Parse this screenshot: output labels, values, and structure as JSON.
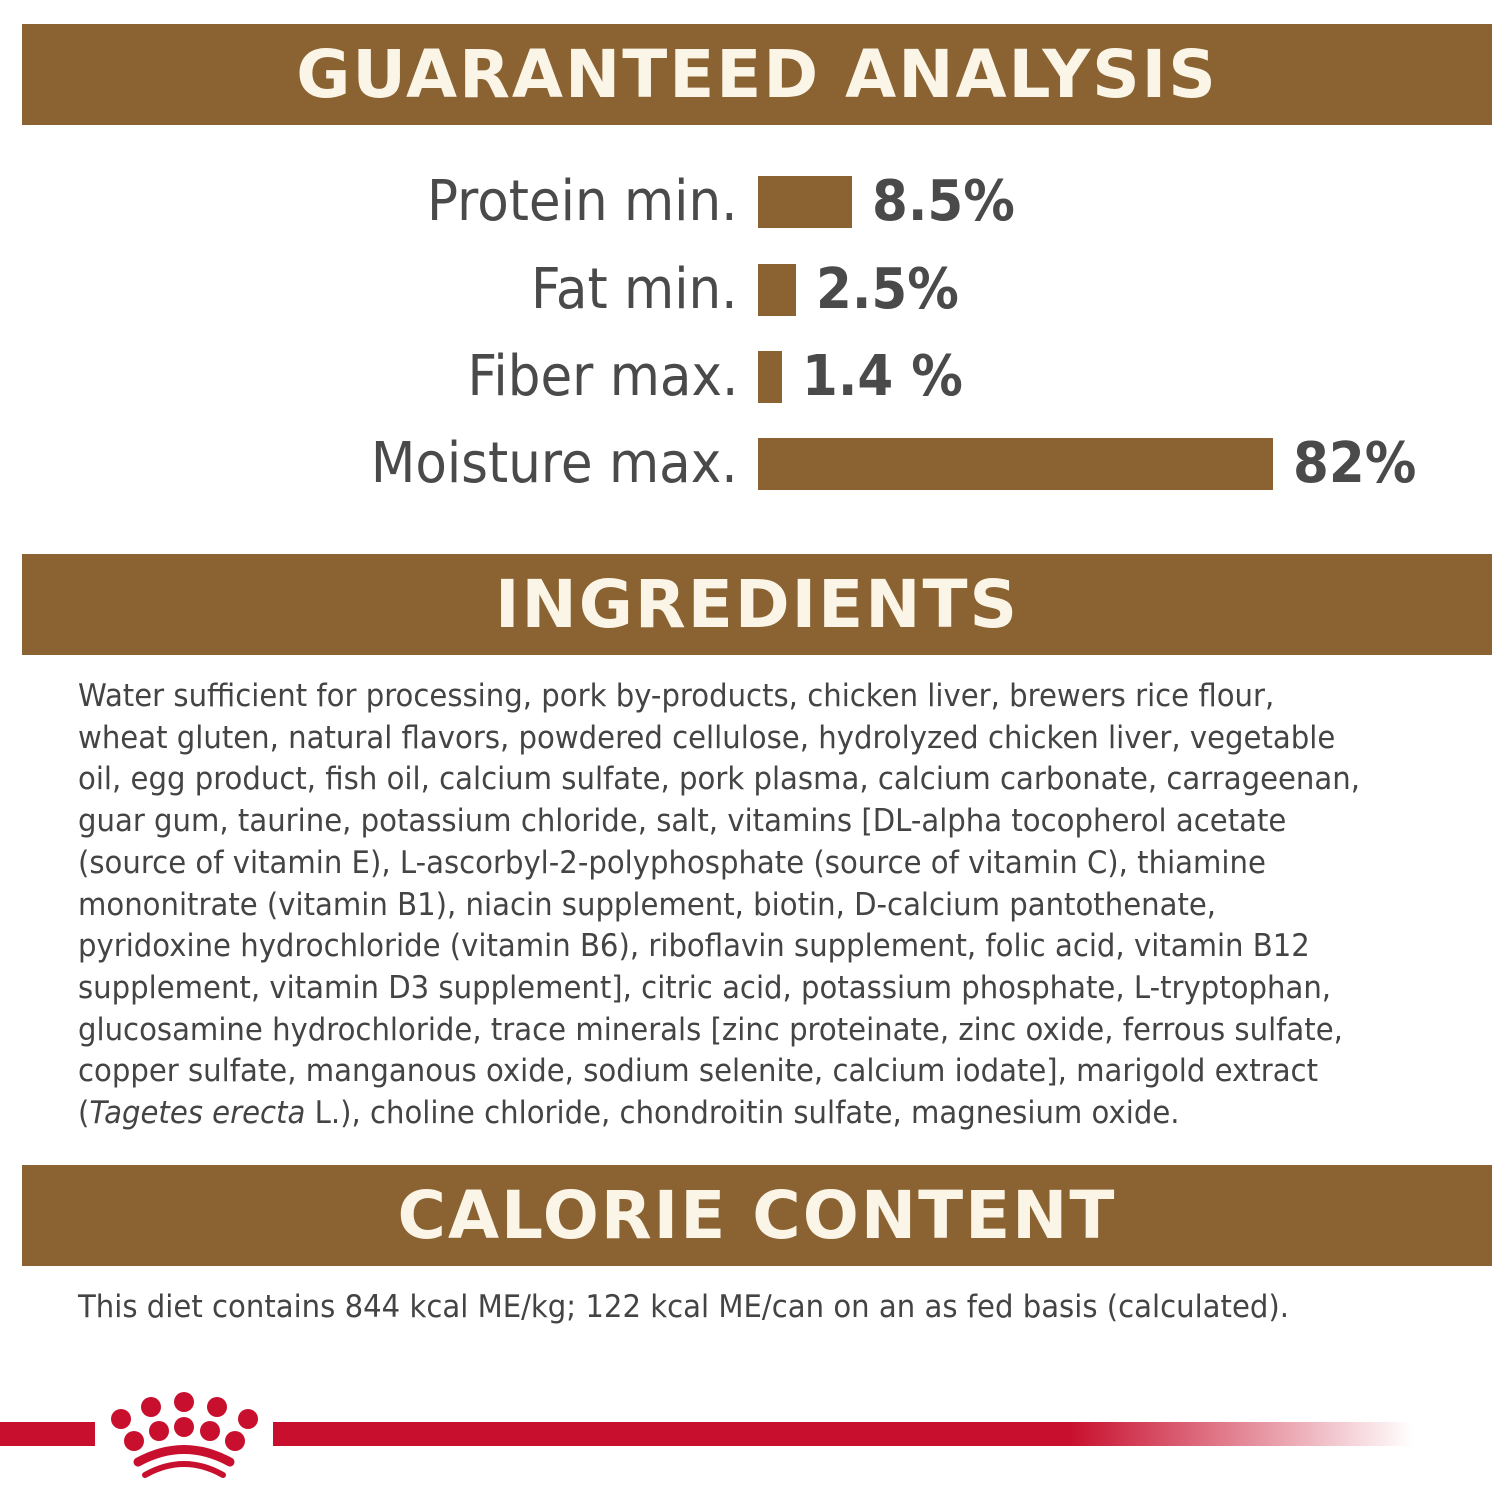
{
  "colors": {
    "brand": "#8b6332",
    "accent_red": "#c8102e",
    "text": "#4a4a4a"
  },
  "guaranteed_analysis": {
    "title": "GUARANTEED ANALYSIS",
    "items": [
      {
        "label": "Protein min.",
        "value": 8.5,
        "display": "8.5%"
      },
      {
        "label": "Fat min.",
        "value": 2.5,
        "display": "2.5%"
      },
      {
        "label": "Fiber max.",
        "value": 1.4,
        "display": "1.4 %"
      },
      {
        "label": "Moisture max.",
        "value": 82,
        "display": "82%"
      }
    ]
  },
  "ingredients": {
    "title": "INGREDIENTS",
    "lines": [
      "Water sufficient for processing, pork by-products, chicken liver, brewers rice flour,",
      "wheat gluten, natural flavors, powdered cellulose, hydrolyzed chicken liver, vegetable",
      "oil, egg product, fish oil, calcium sulfate, pork plasma, calcium carbonate, carrageenan,",
      "guar gum, taurine, potassium chloride, salt, vitamins [DL-alpha tocopherol acetate",
      "(source of vitamin E), L-ascorbyl-2-polyphosphate (source of vitamin C), thiamine",
      "mononitrate (vitamin B1), niacin supplement, biotin, D-calcium pantothenate,",
      "pyridoxine hydrochloride (vitamin B6), riboflavin supplement, folic acid, vitamin B12",
      "supplement, vitamin D3 supplement], citric acid, potassium phosphate, L-tryptophan,",
      "glucosamine hydrochloride, trace minerals [zinc proteinate, zinc oxide, ferrous sulfate,",
      "copper sulfate, manganous oxide, sodium selenite, calcium iodate], marigold extract"
    ],
    "last_line": {
      "open": "(",
      "italic": "Tagetes erecta",
      "rest": " L.), choline chloride, chondroitin sulfate, magnesium oxide."
    }
  },
  "calorie_content": {
    "title": "CALORIE CONTENT",
    "text": "This diet contains 844 kcal ME/kg; 122 kcal ME/can on an as fed basis (calculated)."
  },
  "logo": {
    "name": "crown-logo"
  }
}
